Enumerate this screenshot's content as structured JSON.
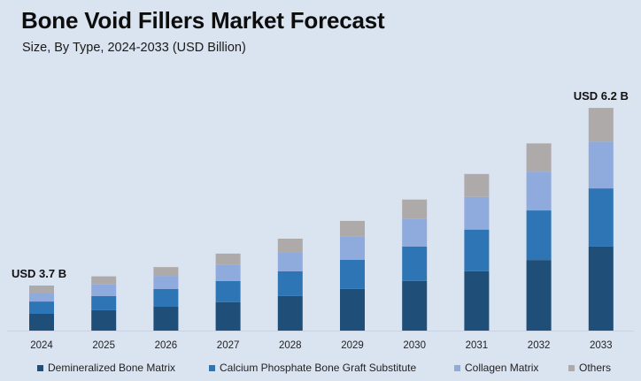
{
  "chart_data": {
    "type": "bar",
    "stacked": true,
    "title": "Bone Void Fillers Market Forecast",
    "subtitle": "Size, By Type, 2024-2033 (USD Billion)",
    "xlabel": "",
    "ylabel": "",
    "grid": false,
    "legend_position": "bottom",
    "categories": [
      "2024",
      "2025",
      "2026",
      "2027",
      "2028",
      "2029",
      "2030",
      "2031",
      "2032",
      "2033"
    ],
    "series": [
      {
        "name": "Demineralized Bone Matrix",
        "color": "#1f4e79",
        "values": [
          1.38,
          1.44,
          1.49,
          1.53,
          1.64,
          1.75,
          1.86,
          2.0,
          2.15,
          2.34
        ]
      },
      {
        "name": "Calcium Phosphate Bone Graft Substitute",
        "color": "#2e75b6",
        "values": [
          1.01,
          1.0,
          1.1,
          1.14,
          1.17,
          1.23,
          1.29,
          1.4,
          1.51,
          1.62
        ]
      },
      {
        "name": "Collagen Matrix",
        "color": "#8faadc",
        "values": [
          0.73,
          0.82,
          0.82,
          0.86,
          0.88,
          0.97,
          1.03,
          1.1,
          1.18,
          1.3
        ]
      },
      {
        "name": "Others",
        "color": "#aeaaaa",
        "values": [
          0.58,
          0.57,
          0.55,
          0.62,
          0.67,
          0.66,
          0.73,
          0.77,
          0.86,
          0.94
        ]
      }
    ],
    "totals": [
      3.7,
      3.83,
      3.96,
      4.15,
      4.36,
      4.61,
      4.91,
      5.27,
      5.7,
      6.2
    ],
    "annotations": [
      {
        "category": "2024",
        "text": "USD 3.7 B"
      },
      {
        "category": "2033",
        "text": "USD 6.2 B"
      }
    ]
  }
}
